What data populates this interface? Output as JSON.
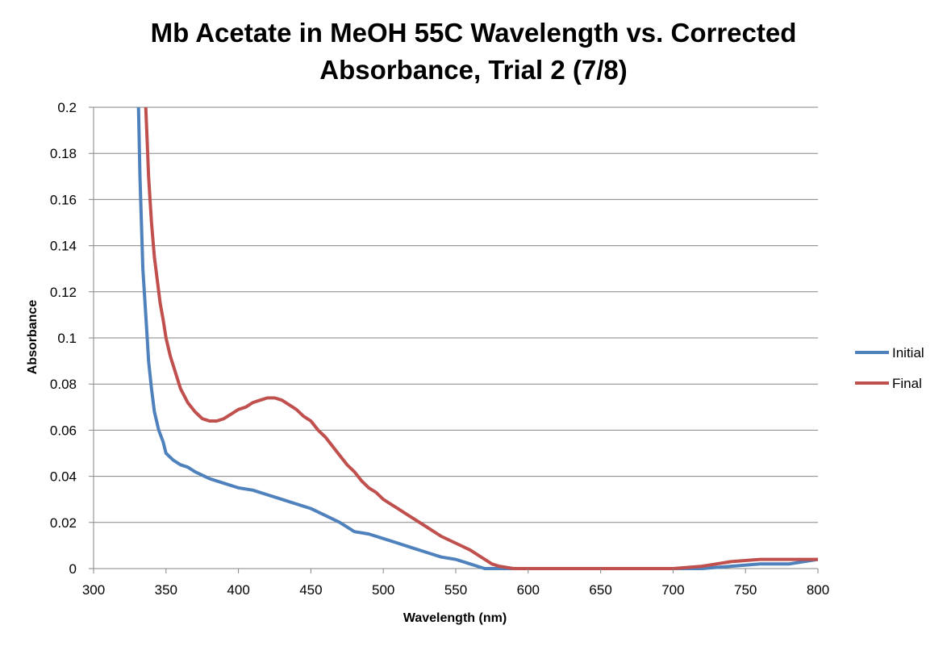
{
  "chart_data": {
    "type": "line",
    "title_lines": [
      "Mb Acetate in MeOH 55C Wavelength vs. Corrected",
      "Absorbance, Trial 2 (7/8)"
    ],
    "xlabel": "Wavelength (nm)",
    "ylabel": "Absorbance",
    "xlim": [
      300,
      800
    ],
    "ylim": [
      0,
      0.2
    ],
    "x_ticks": [
      300,
      350,
      400,
      450,
      500,
      550,
      600,
      650,
      700,
      750,
      800
    ],
    "y_ticks": [
      0,
      0.02,
      0.04,
      0.06,
      0.08,
      0.1,
      0.12,
      0.14,
      0.16,
      0.18,
      0.2
    ],
    "x_tick_labels": [
      "300",
      "350",
      "400",
      "450",
      "500",
      "550",
      "600",
      "650",
      "700",
      "750",
      "800"
    ],
    "y_tick_labels": [
      "0",
      "0.02",
      "0.04",
      "0.06",
      "0.08",
      "0.1",
      "0.12",
      "0.14",
      "0.16",
      "0.18",
      "0.2"
    ],
    "grid": "horizontal",
    "legend_position": "right",
    "series": [
      {
        "name": "Initial",
        "color": "#4f81bd",
        "x": [
          331,
          332,
          333,
          334,
          335,
          336,
          337,
          338,
          340,
          342,
          345,
          348,
          350,
          355,
          360,
          365,
          370,
          380,
          390,
          400,
          410,
          420,
          430,
          440,
          450,
          460,
          470,
          480,
          490,
          500,
          510,
          520,
          530,
          540,
          550,
          560,
          565,
          570,
          575,
          580,
          600,
          650,
          700,
          720,
          740,
          760,
          780,
          800
        ],
        "y": [
          0.2,
          0.17,
          0.15,
          0.13,
          0.12,
          0.11,
          0.1,
          0.09,
          0.078,
          0.068,
          0.06,
          0.055,
          0.05,
          0.047,
          0.045,
          0.044,
          0.042,
          0.039,
          0.037,
          0.035,
          0.034,
          0.032,
          0.03,
          0.028,
          0.026,
          0.023,
          0.02,
          0.016,
          0.015,
          0.013,
          0.011,
          0.009,
          0.007,
          0.005,
          0.004,
          0.002,
          0.001,
          0.0,
          0.0,
          0.0,
          0.0,
          0.0,
          0.0,
          0.0,
          0.001,
          0.002,
          0.002,
          0.004
        ]
      },
      {
        "name": "Final",
        "color": "#c0504d",
        "x": [
          336,
          337,
          338,
          339,
          340,
          342,
          344,
          346,
          348,
          350,
          353,
          356,
          360,
          365,
          370,
          375,
          380,
          385,
          390,
          395,
          400,
          405,
          410,
          415,
          420,
          425,
          430,
          435,
          440,
          445,
          450,
          455,
          460,
          465,
          470,
          475,
          480,
          485,
          490,
          495,
          500,
          505,
          510,
          520,
          530,
          540,
          550,
          560,
          565,
          570,
          575,
          580,
          590,
          600,
          650,
          700,
          720,
          740,
          760,
          780,
          800
        ],
        "y": [
          0.2,
          0.185,
          0.17,
          0.16,
          0.15,
          0.135,
          0.125,
          0.115,
          0.108,
          0.1,
          0.092,
          0.086,
          0.078,
          0.072,
          0.068,
          0.065,
          0.064,
          0.064,
          0.065,
          0.067,
          0.069,
          0.07,
          0.072,
          0.073,
          0.074,
          0.074,
          0.073,
          0.071,
          0.069,
          0.066,
          0.064,
          0.06,
          0.057,
          0.053,
          0.049,
          0.045,
          0.042,
          0.038,
          0.035,
          0.033,
          0.03,
          0.028,
          0.026,
          0.022,
          0.018,
          0.014,
          0.011,
          0.008,
          0.006,
          0.004,
          0.002,
          0.001,
          0.0,
          0.0,
          0.0,
          0.0,
          0.001,
          0.003,
          0.004,
          0.004,
          0.004
        ]
      }
    ]
  }
}
